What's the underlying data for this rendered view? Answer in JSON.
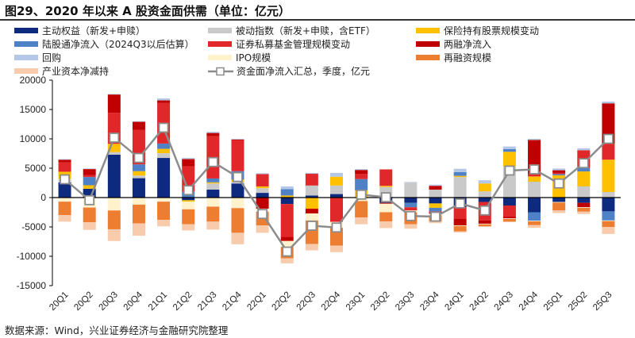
{
  "title": "图29、2020 年以来 A 股资金面供需（单位：亿元）",
  "source": "数据来源：Wind，兴业证券经济与金融研究院整理",
  "chart_data": {
    "type": "bar",
    "stacked": true,
    "title": "图29、2020 年以来 A 股资金面供需（单位：亿元）",
    "xlabel": "",
    "ylabel": "",
    "ylim": [
      -15000,
      20000
    ],
    "yticks": [
      20000,
      15000,
      10000,
      5000,
      0,
      -5000,
      -10000,
      -15000
    ],
    "ytick_labels": [
      "20000",
      "15000",
      "10000",
      "5000",
      "0",
      "-5000",
      "-10000",
      "-15000"
    ],
    "grid": false,
    "legend_position": "top",
    "categories": [
      "20Q1",
      "20Q2",
      "20Q3",
      "20Q4",
      "21Q1",
      "21Q2",
      "21Q3",
      "21Q4",
      "22Q1",
      "22Q2",
      "22Q3",
      "22Q4",
      "23Q1",
      "23Q2",
      "23Q3",
      "23Q4",
      "24Q1",
      "24Q2",
      "24Q3",
      "24Q4",
      "25Q1",
      "25Q2",
      "25Q3"
    ],
    "series": [
      {
        "name": "主动权益（新发+申赎）",
        "color": "#0e2a7f",
        "values": [
          2600,
          1500,
          7300,
          3300,
          6750,
          -450,
          1350,
          2400,
          800,
          -1100,
          350,
          600,
          0,
          -900,
          -900,
          -1000,
          -1650,
          -750,
          -1350,
          -2500,
          -750,
          -900,
          -2350
        ]
      },
      {
        "name": "被动指数（新发+申赎，含ETF）",
        "color": "#c9c9c9",
        "values": [
          600,
          0,
          450,
          450,
          800,
          0,
          1050,
          300,
          800,
          0,
          1700,
          1450,
          0,
          1800,
          2550,
          1350,
          3500,
          1050,
          5300,
          2700,
          0,
          1900,
          950
        ]
      },
      {
        "name": "保险持有股票规模变动",
        "color": "#ffc000",
        "values": [
          1200,
          600,
          1400,
          750,
          750,
          -250,
          200,
          350,
          300,
          350,
          -1900,
          1500,
          1200,
          200,
          0,
          -750,
          200,
          1350,
          2500,
          900,
          3800,
          2550,
          5500
        ]
      },
      {
        "name": "陆股通净流入（2024Q3以后估算）",
        "color": "#4f81c7",
        "values": [
          0,
          1400,
          0,
          1150,
          900,
          1000,
          650,
          1450,
          0,
          1100,
          0,
          0,
          1950,
          0,
          -750,
          -600,
          650,
          0,
          450,
          -1450,
          200,
          600,
          -1550
        ]
      },
      {
        "name": "证券私募基金管理规模变动",
        "color": "#e0282a",
        "values": [
          1600,
          350,
          5300,
          5900,
          6900,
          4300,
          7200,
          5300,
          2100,
          -5600,
          2000,
          -4150,
          900,
          2800,
          -550,
          -450,
          -2000,
          -3150,
          -1900,
          350,
          200,
          3000,
          2700
        ]
      },
      {
        "name": "两融净流入",
        "color": "#c00000",
        "values": [
          450,
          1000,
          3100,
          1350,
          450,
          1250,
          550,
          100,
          -1900,
          -700,
          -800,
          0,
          650,
          -150,
          0,
          650,
          -1100,
          -550,
          -300,
          5850,
          450,
          -750,
          6900
        ]
      },
      {
        "name": "回购",
        "color": "#b4c7e7",
        "values": [
          100,
          100,
          100,
          100,
          350,
          200,
          200,
          100,
          150,
          450,
          150,
          650,
          150,
          0,
          100,
          200,
          550,
          550,
          450,
          200,
          300,
          350,
          300
        ]
      },
      {
        "name": "IPO规模",
        "color": "#fff2cc",
        "values": [
          -700,
          -1700,
          -2200,
          -1200,
          -700,
          -1300,
          -1550,
          -1800,
          -500,
          -1000,
          -1200,
          -1000,
          -600,
          -1450,
          -300,
          -200,
          -100,
          -100,
          -100,
          -100,
          -100,
          -100,
          -100
        ]
      },
      {
        "name": "再融资规模",
        "color": "#ed7d31",
        "values": [
          -2300,
          -2500,
          -3200,
          -3200,
          -3100,
          -2550,
          -2550,
          -4200,
          -2350,
          -1950,
          -4000,
          -3050,
          -2800,
          -1550,
          -2050,
          -1100,
          -900,
          -350,
          -450,
          -650,
          -1350,
          -650,
          -1000
        ]
      },
      {
        "name": "产业资本净减持",
        "color": "#f8cbad",
        "values": [
          -1100,
          -1300,
          -2000,
          -2100,
          -1100,
          -1050,
          -1350,
          -1950,
          -1250,
          -850,
          -1100,
          -1100,
          -1150,
          -1150,
          -750,
          -250,
          -200,
          -100,
          -100,
          -450,
          -450,
          -400,
          -1200
        ]
      }
    ],
    "line_series": {
      "name": "资金面净流入汇总，季度，亿元",
      "color": "#8c8c8c",
      "type": "line",
      "marker": "square",
      "values": [
        3100,
        -450,
        10200,
        6750,
        11900,
        1250,
        6050,
        3500,
        -2800,
        -9200,
        -4800,
        -5100,
        500,
        50,
        -3150,
        -3250,
        -1000,
        -2200,
        4600,
        4800,
        2400,
        5850,
        10000
      ]
    }
  }
}
